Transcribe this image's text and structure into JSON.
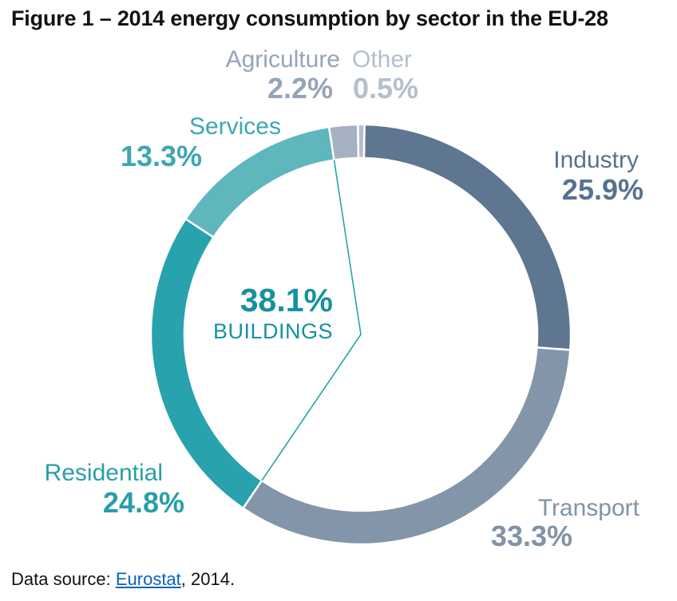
{
  "title": "Figure 1 – 2014 energy consumption by sector in the EU-28",
  "source": {
    "prefix": "Data source: ",
    "link_text": "Eurostat",
    "suffix": ", 2014.",
    "link_color": "#0563c1"
  },
  "chart_data": {
    "type": "pie",
    "subtype": "donut",
    "title": "2014 energy consumption by sector in the EU-28",
    "units": "percent",
    "start_angle_deg": 1,
    "clockwise": true,
    "labels_position": "around",
    "legend": false,
    "separator_color": "#ffffff",
    "segments": [
      {
        "key": "industry",
        "label": "Industry",
        "value": 25.9,
        "pct_text": "25.9%",
        "arc_color": "#5e7690",
        "label_color": "#56728f"
      },
      {
        "key": "transport",
        "label": "Transport",
        "value": 33.3,
        "pct_text": "33.3%",
        "arc_color": "#8395a8",
        "label_color": "#8093a8"
      },
      {
        "key": "residential",
        "label": "Residential",
        "value": 24.8,
        "pct_text": "24.8%",
        "arc_color": "#28a2ac",
        "label_color": "#279fa9"
      },
      {
        "key": "services",
        "label": "Services",
        "value": 13.3,
        "pct_text": "13.3%",
        "arc_color": "#5fb6bd",
        "label_color": "#3ea7b2"
      },
      {
        "key": "agriculture",
        "label": "Agriculture",
        "value": 2.2,
        "pct_text": "2.2%",
        "arc_color": "#a6b2c3",
        "label_color": "#96a4b8"
      },
      {
        "key": "other",
        "label": "Other",
        "value": 0.5,
        "pct_text": "0.5%",
        "arc_color": "#b4bfcd",
        "label_color": "#b3bfcc"
      }
    ],
    "center_annotation": {
      "value": 38.1,
      "pct_text": "38.1%",
      "label": "BUILDINGS",
      "includes": [
        "Residential",
        "Services"
      ],
      "color": "#1791a0"
    }
  }
}
